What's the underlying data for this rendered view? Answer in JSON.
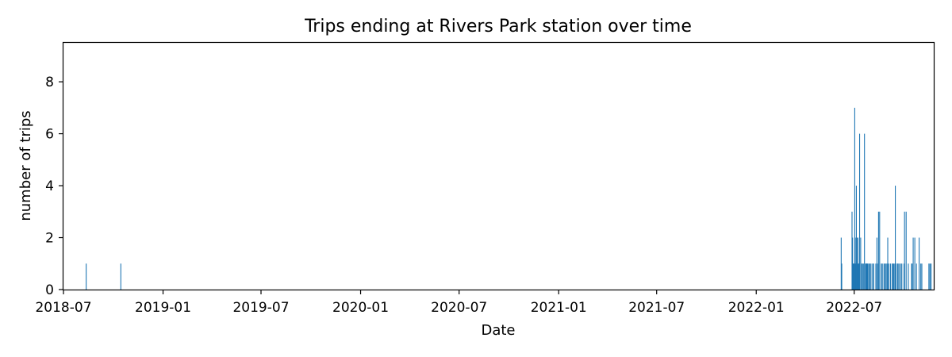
{
  "chart_data": {
    "type": "bar",
    "title": "Trips ending at Rivers Park station over time",
    "xlabel": "Date",
    "ylabel": "number of trips",
    "x_scale": "date",
    "xlim": [
      "2018-07-01",
      "2022-11-25"
    ],
    "ylim": [
      0,
      9.5
    ],
    "grid": false,
    "bar_color": "#1f77b4",
    "xticks": [
      "2018-07",
      "2019-01",
      "2019-07",
      "2020-01",
      "2020-07",
      "2021-01",
      "2021-07",
      "2022-01",
      "2022-07"
    ],
    "xtick_dates": [
      "2018-07-01",
      "2019-01-01",
      "2019-07-01",
      "2020-01-01",
      "2020-07-01",
      "2021-01-01",
      "2021-07-01",
      "2022-01-01",
      "2022-07-01"
    ],
    "yticks": [
      0,
      2,
      4,
      6,
      8
    ],
    "x": [
      "2018-08-12",
      "2018-10-15",
      "2022-06-07",
      "2022-06-08",
      "2022-06-27",
      "2022-06-28",
      "2022-06-29",
      "2022-06-30",
      "2022-07-01",
      "2022-07-02",
      "2022-07-03",
      "2022-07-04",
      "2022-07-05",
      "2022-07-06",
      "2022-07-07",
      "2022-07-08",
      "2022-07-09",
      "2022-07-10",
      "2022-07-11",
      "2022-07-13",
      "2022-07-15",
      "2022-07-16",
      "2022-07-18",
      "2022-07-20",
      "2022-07-22",
      "2022-07-23",
      "2022-07-24",
      "2022-07-25",
      "2022-07-26",
      "2022-07-28",
      "2022-07-30",
      "2022-08-01",
      "2022-08-04",
      "2022-08-06",
      "2022-08-10",
      "2022-08-12",
      "2022-08-13",
      "2022-08-15",
      "2022-08-17",
      "2022-08-20",
      "2022-08-22",
      "2022-08-25",
      "2022-08-27",
      "2022-08-29",
      "2022-08-31",
      "2022-09-01",
      "2022-09-03",
      "2022-09-06",
      "2022-09-09",
      "2022-09-10",
      "2022-09-12",
      "2022-09-14",
      "2022-09-15",
      "2022-09-16",
      "2022-09-19",
      "2022-09-20",
      "2022-09-22",
      "2022-09-25",
      "2022-09-27",
      "2022-10-01",
      "2022-10-02",
      "2022-10-05",
      "2022-10-09",
      "2022-10-15",
      "2022-10-16",
      "2022-10-18",
      "2022-10-21",
      "2022-10-24",
      "2022-10-29",
      "2022-11-01",
      "2022-11-03",
      "2022-11-16",
      "2022-11-18",
      "2022-11-20"
    ],
    "values": [
      1,
      1,
      2,
      1,
      3,
      2,
      1,
      1,
      1,
      7,
      2,
      1,
      4,
      2,
      1,
      2,
      1,
      1,
      6,
      2,
      1,
      1,
      1,
      6,
      1,
      1,
      1,
      1,
      1,
      1,
      1,
      1,
      1,
      1,
      1,
      2,
      1,
      3,
      3,
      1,
      1,
      1,
      1,
      1,
      1,
      2,
      1,
      1,
      1,
      1,
      1,
      1,
      4,
      1,
      1,
      1,
      1,
      1,
      1,
      1,
      3,
      3,
      1,
      1,
      1,
      2,
      2,
      1,
      2,
      1,
      1,
      1,
      1,
      1
    ]
  }
}
